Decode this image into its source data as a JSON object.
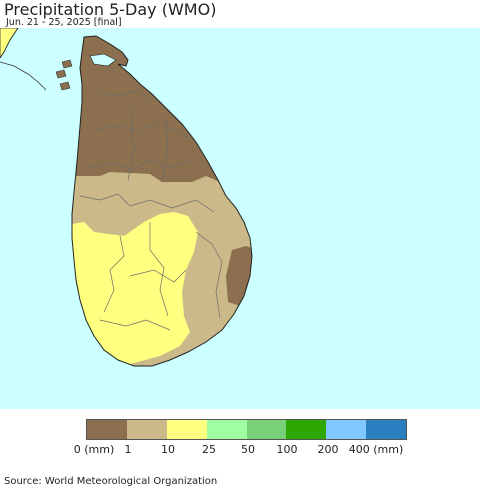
{
  "header": {
    "title": "Precipitation 5-Day (WMO)",
    "subtitle": "Jun. 21 - 25, 2025 [final]"
  },
  "map": {
    "region": "Sri Lanka",
    "ocean_color": "#ccffff",
    "boundary_color": "#6b6b6b"
  },
  "legend": {
    "swatches": [
      {
        "color": "#8b6f4e"
      },
      {
        "color": "#cbb98a"
      },
      {
        "color": "#ffff80"
      },
      {
        "color": "#a0ffa0"
      },
      {
        "color": "#78d078"
      },
      {
        "color": "#2ca800"
      },
      {
        "color": "#80c8ff"
      },
      {
        "color": "#2a7fc0"
      }
    ],
    "labels": [
      "0 (mm)",
      "1",
      "10",
      "25",
      "50",
      "100",
      "200",
      "400 (mm)"
    ]
  },
  "footer": {
    "source": "Source: World Meteorological Organization"
  }
}
